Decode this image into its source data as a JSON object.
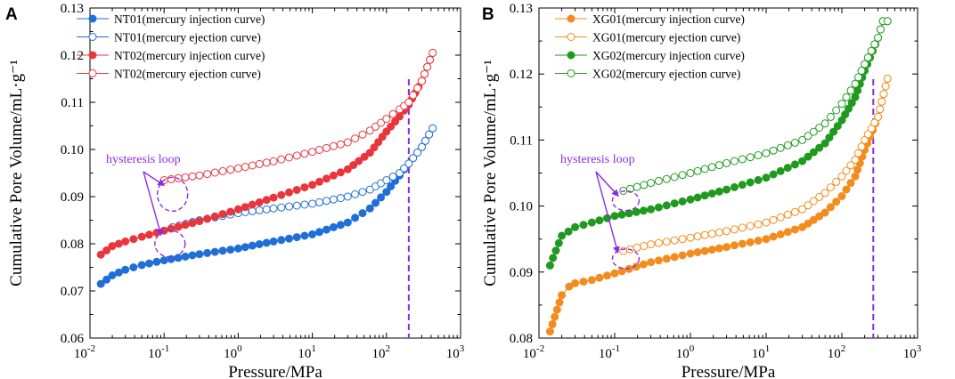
{
  "chart_data": [
    {
      "type": "scatter",
      "panel_label": "A",
      "xscale": "log",
      "xlim": [
        0.01,
        1000
      ],
      "ylim": [
        0.06,
        0.13
      ],
      "xlabel": "Pressure/MPa",
      "ylabel": "Cumulative Pore Volume/mL·g⁻¹",
      "x_ticks": [
        {
          "v": 0.01,
          "base": "10",
          "exp": "-2"
        },
        {
          "v": 0.1,
          "base": "10",
          "exp": "-1"
        },
        {
          "v": 1,
          "base": "10",
          "exp": "0"
        },
        {
          "v": 10,
          "base": "10",
          "exp": "1"
        },
        {
          "v": 100,
          "base": "10",
          "exp": "2"
        },
        {
          "v": 1000,
          "base": "10",
          "exp": "3"
        }
      ],
      "y_ticks": [
        "0.06",
        "0.07",
        "0.08",
        "0.09",
        "0.10",
        "0.11",
        "0.12",
        "0.13"
      ],
      "legend_position": "top-left",
      "series": [
        {
          "name": "NT01(mercury injection curve)",
          "color": "#1f6fd6",
          "filled": true,
          "points": [
            [
              0.014,
              0.0715
            ],
            [
              0.02,
              0.0733
            ],
            [
              0.03,
              0.0745
            ],
            [
              0.05,
              0.0755
            ],
            [
              0.1,
              0.0765
            ],
            [
              0.3,
              0.0778
            ],
            [
              1,
              0.079
            ],
            [
              3,
              0.0805
            ],
            [
              10,
              0.082
            ],
            [
              30,
              0.0845
            ],
            [
              60,
              0.0875
            ],
            [
              100,
              0.091
            ],
            [
              150,
              0.0945
            ],
            [
              200,
              0.097
            ],
            [
              300,
              0.1005
            ],
            [
              420,
              0.1045
            ]
          ]
        },
        {
          "name": "NT01(mercury ejection curve)",
          "color": "#1f6fd6",
          "filled": false,
          "points": [
            [
              0.13,
              0.0835
            ],
            [
              0.3,
              0.085
            ],
            [
              1,
              0.0865
            ],
            [
              3,
              0.0875
            ],
            [
              10,
              0.0885
            ],
            [
              30,
              0.09
            ],
            [
              60,
              0.0915
            ],
            [
              100,
              0.0935
            ],
            [
              150,
              0.095
            ],
            [
              200,
              0.097
            ],
            [
              300,
              0.1005
            ],
            [
              420,
              0.1045
            ]
          ]
        },
        {
          "name": "NT02(mercury injection curve)",
          "color": "#e8363d",
          "filled": true,
          "points": [
            [
              0.014,
              0.0777
            ],
            [
              0.02,
              0.0795
            ],
            [
              0.03,
              0.0805
            ],
            [
              0.05,
              0.0815
            ],
            [
              0.1,
              0.0828
            ],
            [
              0.3,
              0.0848
            ],
            [
              1,
              0.0873
            ],
            [
              3,
              0.0898
            ],
            [
              10,
              0.0925
            ],
            [
              30,
              0.0958
            ],
            [
              60,
              0.0993
            ],
            [
              100,
              0.1038
            ],
            [
              150,
              0.107
            ],
            [
              200,
              0.1095
            ],
            [
              300,
              0.1145
            ],
            [
              420,
              0.1205
            ]
          ]
        },
        {
          "name": "NT02(mercury ejection curve)",
          "color": "#e8363d",
          "filled": false,
          "points": [
            [
              0.1,
              0.0935
            ],
            [
              0.3,
              0.0945
            ],
            [
              1,
              0.096
            ],
            [
              3,
              0.0975
            ],
            [
              10,
              0.0995
            ],
            [
              30,
              0.1015
            ],
            [
              60,
              0.104
            ],
            [
              100,
              0.1065
            ],
            [
              150,
              0.1085
            ],
            [
              200,
              0.11
            ],
            [
              300,
              0.1145
            ],
            [
              420,
              0.1205
            ]
          ]
        }
      ],
      "vline_x": 200,
      "annotation": "hysteresis loop",
      "hysteresis_points": [
        [
          0.13,
          0.0905
        ],
        [
          0.12,
          0.08
        ]
      ]
    },
    {
      "type": "scatter",
      "panel_label": "B",
      "xscale": "log",
      "xlim": [
        0.01,
        1000
      ],
      "ylim": [
        0.08,
        0.13
      ],
      "xlabel": "Pressure/MPa",
      "ylabel": "Cumulative Pore Volume/mL·g⁻¹",
      "x_ticks": [
        {
          "v": 0.01,
          "base": "10",
          "exp": "-2"
        },
        {
          "v": 0.1,
          "base": "10",
          "exp": "-1"
        },
        {
          "v": 1,
          "base": "10",
          "exp": "0"
        },
        {
          "v": 10,
          "base": "10",
          "exp": "1"
        },
        {
          "v": 100,
          "base": "10",
          "exp": "2"
        },
        {
          "v": 1000,
          "base": "10",
          "exp": "3"
        }
      ],
      "y_ticks": [
        "0.08",
        "0.09",
        "0.10",
        "0.11",
        "0.12",
        "0.13"
      ],
      "legend_position": "top-left",
      "series": [
        {
          "name": "XG01(mercury injection curve)",
          "color": "#f28c1c",
          "filled": true,
          "points": [
            [
              0.014,
              0.081
            ],
            [
              0.02,
              0.0865
            ],
            [
              0.025,
              0.0878
            ],
            [
              0.03,
              0.0883
            ],
            [
              0.05,
              0.0888
            ],
            [
              0.1,
              0.0898
            ],
            [
              0.3,
              0.0915
            ],
            [
              1,
              0.0928
            ],
            [
              3,
              0.0938
            ],
            [
              10,
              0.095
            ],
            [
              30,
              0.0968
            ],
            [
              60,
              0.099
            ],
            [
              100,
              0.1015
            ],
            [
              150,
              0.1045
            ],
            [
              200,
              0.1085
            ],
            [
              300,
              0.1135
            ],
            [
              400,
              0.1193
            ]
          ]
        },
        {
          "name": "XG01(mercury ejection curve)",
          "color": "#f28c1c",
          "filled": false,
          "points": [
            [
              0.13,
              0.0932
            ],
            [
              0.3,
              0.0942
            ],
            [
              1,
              0.0952
            ],
            [
              3,
              0.0962
            ],
            [
              10,
              0.0975
            ],
            [
              30,
              0.0995
            ],
            [
              60,
              0.102
            ],
            [
              100,
              0.1045
            ],
            [
              150,
              0.107
            ],
            [
              200,
              0.11
            ],
            [
              300,
              0.1135
            ],
            [
              400,
              0.1193
            ]
          ]
        },
        {
          "name": "XG02(mercury injection curve)",
          "color": "#1e9a1e",
          "filled": true,
          "points": [
            [
              0.014,
              0.091
            ],
            [
              0.02,
              0.0955
            ],
            [
              0.03,
              0.0968
            ],
            [
              0.05,
              0.0975
            ],
            [
              0.1,
              0.0985
            ],
            [
              0.3,
              0.0995
            ],
            [
              1,
              0.101
            ],
            [
              3,
              0.1025
            ],
            [
              10,
              0.1043
            ],
            [
              30,
              0.1068
            ],
            [
              60,
              0.1095
            ],
            [
              100,
              0.113
            ],
            [
              150,
              0.1165
            ],
            [
              200,
              0.1205
            ],
            [
              300,
              0.1255
            ],
            [
              350,
              0.128
            ],
            [
              400,
              0.128
            ]
          ]
        },
        {
          "name": "XG02(mercury ejection curve)",
          "color": "#1e9a1e",
          "filled": false,
          "points": [
            [
              0.13,
              0.1023
            ],
            [
              0.3,
              0.1035
            ],
            [
              1,
              0.105
            ],
            [
              3,
              0.1065
            ],
            [
              10,
              0.108
            ],
            [
              30,
              0.11
            ],
            [
              60,
              0.1125
            ],
            [
              100,
              0.1155
            ],
            [
              150,
              0.1185
            ],
            [
              200,
              0.1215
            ],
            [
              300,
              0.1255
            ],
            [
              350,
              0.128
            ],
            [
              400,
              0.128
            ]
          ]
        }
      ],
      "vline_x": 260,
      "annotation": "hysteresis loop",
      "hysteresis_points": [
        [
          0.14,
          0.1008
        ],
        [
          0.14,
          0.092
        ]
      ]
    }
  ]
}
